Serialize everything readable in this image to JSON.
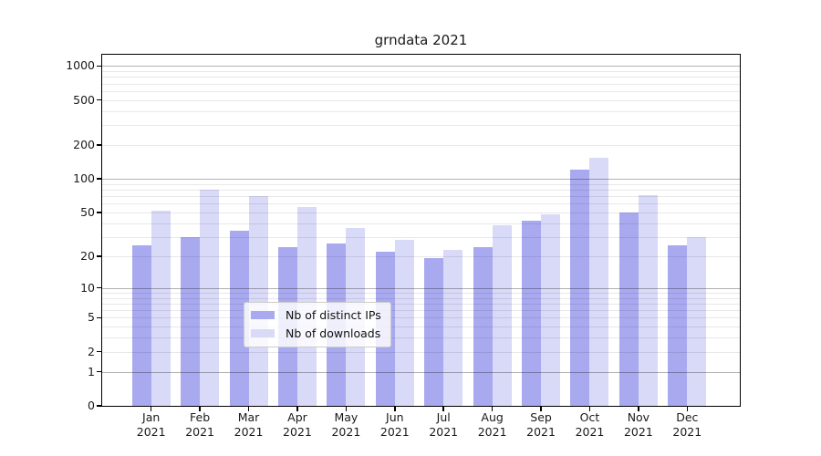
{
  "title": "grndata 2021",
  "chart_data": {
    "type": "bar",
    "title": "grndata 2021",
    "categories": [
      "Jan 2021",
      "Feb 2021",
      "Mar 2021",
      "Apr 2021",
      "May 2021",
      "Jun 2021",
      "Jul 2021",
      "Aug 2021",
      "Sep 2021",
      "Oct 2021",
      "Nov 2021",
      "Dec 2021"
    ],
    "months": [
      "Jan",
      "Feb",
      "Mar",
      "Apr",
      "May",
      "Jun",
      "Jul",
      "Aug",
      "Sep",
      "Oct",
      "Nov",
      "Dec"
    ],
    "year": "2021",
    "series": [
      {
        "name": "Nb of distinct IPs",
        "color": "#a9a9f0",
        "values": [
          25,
          30,
          34,
          24,
          26,
          22,
          19,
          24,
          42,
          120,
          50,
          25
        ]
      },
      {
        "name": "Nb of downloads",
        "color": "#d9d9f8",
        "values": [
          52,
          80,
          70,
          56,
          36,
          28,
          23,
          38,
          48,
          155,
          72,
          30
        ]
      }
    ],
    "xlabel": "",
    "ylabel": "",
    "yscale": "log1p",
    "yticks": [
      0,
      1,
      2,
      5,
      10,
      20,
      50,
      100,
      200,
      500,
      1000
    ],
    "ylim": [
      0,
      1258
    ],
    "grid": "on",
    "legend_position": "lower center",
    "colors": {
      "grid_major": "rgba(0,0,0,0.30)",
      "grid_minor": "rgba(0,0,0,0.09)",
      "spine": "#000000",
      "text": "#1a1a1a",
      "background": "#ffffff"
    }
  }
}
